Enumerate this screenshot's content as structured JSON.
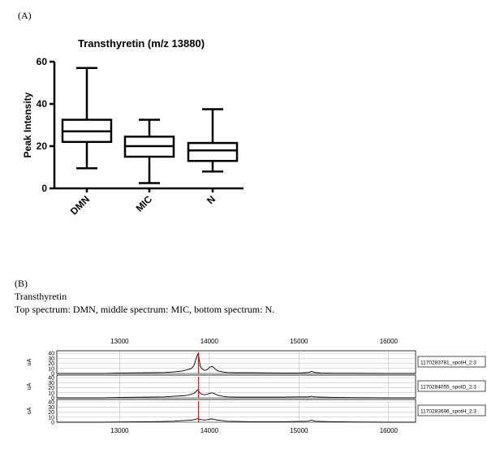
{
  "panel_a": {
    "label": "(A)"
  },
  "panel_b": {
    "label": "(B)",
    "title": "Transthyretin",
    "caption": "Top spectrum: DMN, middle spectrum: MIC, bottom spectrum: N."
  },
  "chart_data": [
    {
      "type": "box",
      "title": "Transthyretin (m/z 13880)",
      "xlabel": "",
      "ylabel": "Peak Intensity",
      "ylim": [
        0,
        60
      ],
      "yticks": [
        0,
        20,
        40,
        60
      ],
      "categories": [
        "DMN",
        "MIC",
        "N"
      ],
      "boxes": [
        {
          "category": "DMN",
          "min": 9.5,
          "q1": 22,
          "median": 27,
          "q3": 32.5,
          "max": 57
        },
        {
          "category": "MIC",
          "min": 2.5,
          "q1": 15,
          "median": 20,
          "q3": 24.5,
          "max": 32.5
        },
        {
          "category": "N",
          "min": 8,
          "q1": 13,
          "median": 18,
          "q3": 21.5,
          "max": 37.5
        }
      ]
    },
    {
      "type": "line",
      "title": "",
      "xlabel": "",
      "ylabel": "",
      "xlim": [
        12300,
        16300
      ],
      "xticks": [
        13000,
        14000,
        15000,
        16000
      ],
      "ylim": [
        0,
        45
      ],
      "yticks": [
        0,
        10,
        20,
        30,
        40
      ],
      "y_axis_symbol": "uA",
      "marker_x": 13880,
      "marker_color": "#e00000",
      "line_color": "#000000",
      "grid": true,
      "series": [
        {
          "name": "1170283781_spotH_2:3",
          "x": [
            12300,
            12800,
            13000,
            13300,
            13500,
            13600,
            13700,
            13750,
            13800,
            13830,
            13850,
            13870,
            13880,
            13890,
            13900,
            13920,
            13950,
            13980,
            14000,
            14030,
            14050,
            14070,
            14100,
            14150,
            14200,
            14300,
            14500,
            14800,
            15000,
            15100,
            15140,
            15180,
            15250,
            15400,
            15600,
            16000,
            16300
          ],
          "y": [
            0,
            0,
            1,
            1.5,
            2,
            3,
            5,
            7,
            10,
            16,
            28,
            38,
            35,
            25,
            14,
            9,
            6,
            8,
            12,
            14,
            12,
            8,
            5,
            3,
            2,
            1.5,
            1.5,
            1,
            1,
            2,
            4,
            2,
            1,
            0.5,
            0.5,
            0,
            0
          ]
        },
        {
          "name": "1170284055_spotD_2:3",
          "x": [
            12300,
            12800,
            13000,
            13300,
            13500,
            13600,
            13700,
            13750,
            13800,
            13830,
            13850,
            13870,
            13880,
            13890,
            13900,
            13920,
            13950,
            13980,
            14000,
            14030,
            14050,
            14070,
            14100,
            14150,
            14200,
            14300,
            14500,
            14800,
            15000,
            15100,
            15140,
            15180,
            15250,
            15400,
            15600,
            16000,
            16300
          ],
          "y": [
            0,
            0,
            1,
            1.5,
            2,
            3,
            4,
            5,
            7,
            9,
            12,
            16,
            14,
            11,
            9,
            7,
            6,
            7,
            9,
            10,
            9,
            7,
            5,
            3,
            2,
            1.5,
            1.5,
            1.5,
            2,
            2,
            3,
            2,
            1.5,
            1,
            0.5,
            0,
            0
          ]
        },
        {
          "name": "1170283696_spotH_2:3",
          "x": [
            12300,
            12800,
            13000,
            13300,
            13500,
            13600,
            13700,
            13750,
            13800,
            13830,
            13850,
            13870,
            13880,
            13890,
            13900,
            13920,
            13950,
            13980,
            14000,
            14030,
            14050,
            14070,
            14100,
            14150,
            14200,
            14300,
            14500,
            14800,
            15000,
            15100,
            15140,
            15180,
            15250,
            15400,
            15600,
            16000,
            16300
          ],
          "y": [
            0,
            0,
            0.5,
            1,
            1.5,
            2,
            3,
            3.5,
            4,
            5,
            6,
            7,
            6.5,
            6,
            5.5,
            5,
            4.5,
            5,
            6,
            6.5,
            6,
            5,
            4,
            3,
            2,
            1.5,
            1,
            1,
            1.5,
            2,
            4,
            2,
            1.5,
            1,
            0.5,
            0,
            0
          ]
        }
      ]
    }
  ]
}
